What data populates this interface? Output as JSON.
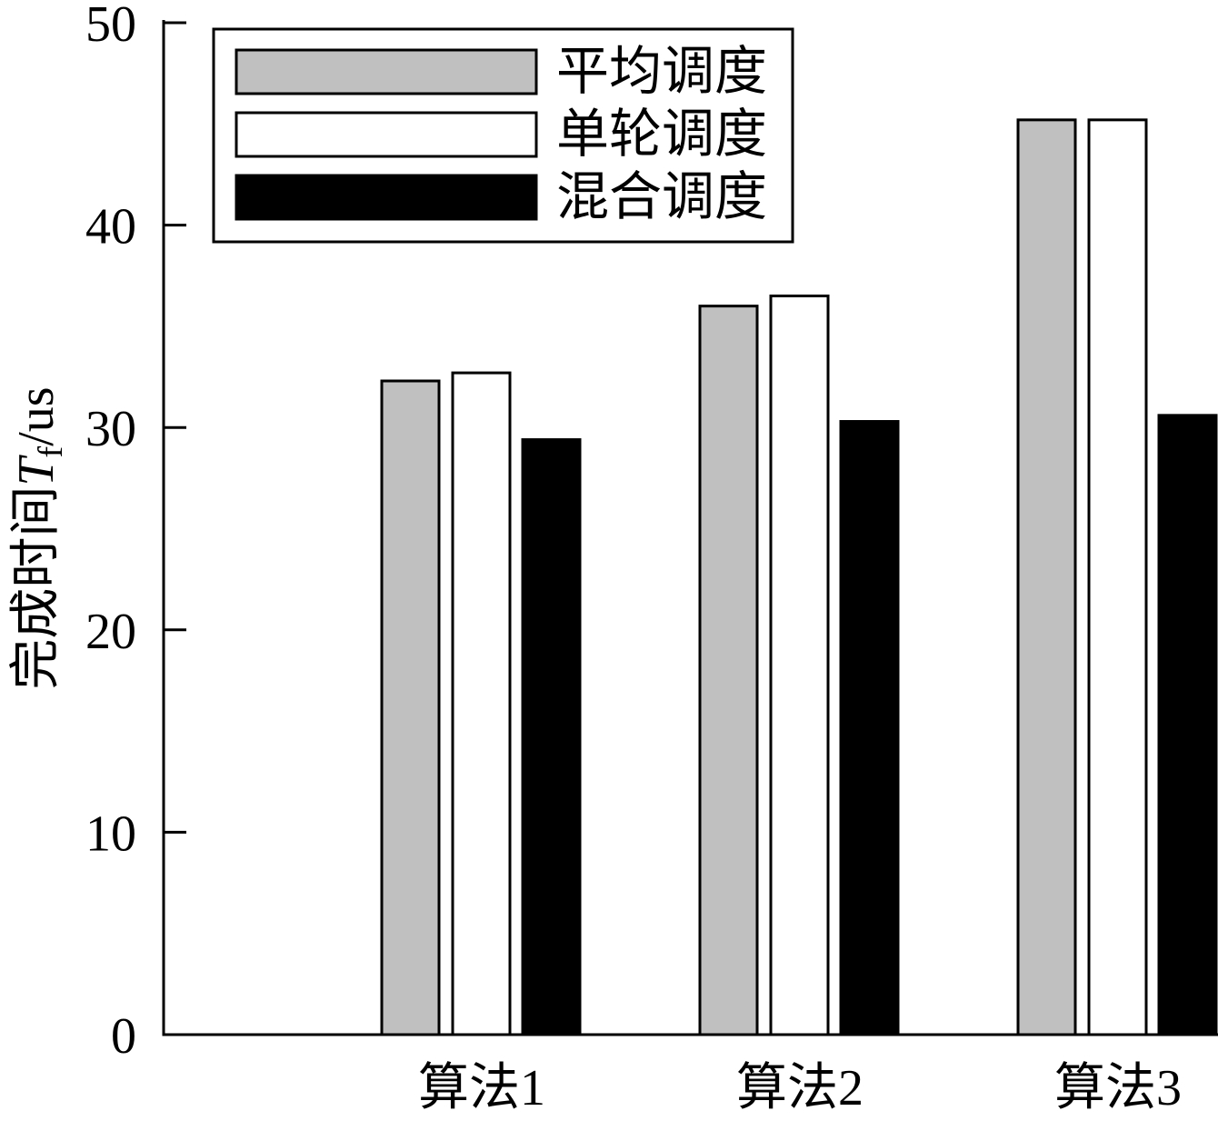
{
  "chart_data": {
    "type": "bar",
    "categories": [
      "算法1",
      "算法2",
      "算法3"
    ],
    "series": [
      {
        "name": "平均调度",
        "values": [
          32.3,
          36.0,
          45.2
        ],
        "color": "#c0c0c0"
      },
      {
        "name": "单轮调度",
        "values": [
          32.7,
          36.5,
          45.2
        ],
        "color": "#ffffff"
      },
      {
        "name": "混合调度",
        "values": [
          29.4,
          30.3,
          30.6
        ],
        "color": "#000000"
      }
    ],
    "ylabel": {
      "text": "完成时间",
      "symbol": "T",
      "subscript": "f",
      "unit": "/us"
    },
    "ylim": [
      0,
      50
    ],
    "yticks": [
      0,
      10,
      20,
      30,
      40,
      50
    ],
    "grid": false,
    "legend": "top-left"
  }
}
